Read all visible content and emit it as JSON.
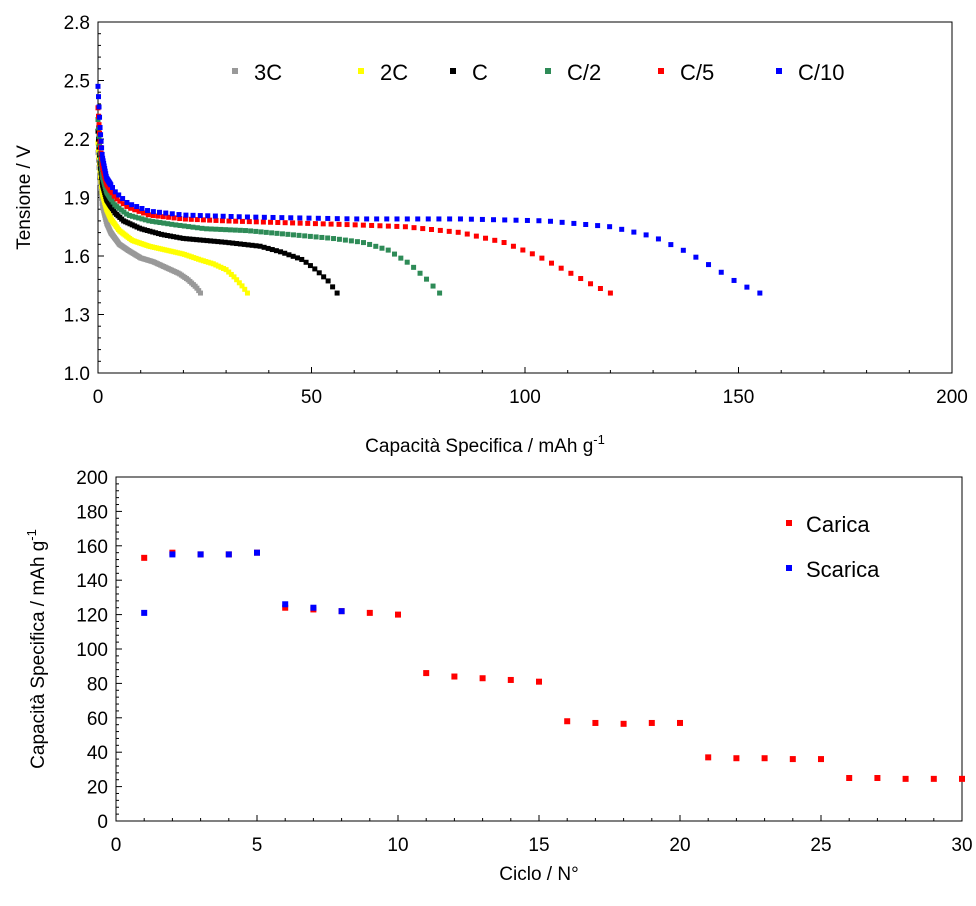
{
  "chart_data": [
    {
      "type": "scatter",
      "xlabel": "Capacità Specifica / mAh g",
      "xlabel_sup": "-1",
      "ylabel": "Tensione / V",
      "xlim": [
        0,
        200
      ],
      "ylim": [
        1.0,
        2.8
      ],
      "x_ticks": [
        "0",
        "50",
        "100",
        "150",
        "200"
      ],
      "y_ticks": [
        "1.0",
        "1.3",
        "1.6",
        "1.9",
        "2.2",
        "2.5",
        "2.8"
      ],
      "x_tick_values": [
        0,
        50,
        100,
        150,
        200
      ],
      "y_tick_values": [
        1.0,
        1.3,
        1.6,
        1.9,
        2.2,
        2.5,
        2.8
      ],
      "legend_position": "top",
      "series": [
        {
          "name": "3C",
          "color": "#999999",
          "capacity": 24,
          "points": [
            [
              0,
              2.13
            ],
            [
              0.5,
              1.97
            ],
            [
              1,
              1.86
            ],
            [
              2,
              1.77
            ],
            [
              3,
              1.72
            ],
            [
              4,
              1.69
            ],
            [
              5,
              1.66
            ],
            [
              7,
              1.63
            ],
            [
              10,
              1.59
            ],
            [
              13,
              1.57
            ],
            [
              16,
              1.54
            ],
            [
              19,
              1.51
            ],
            [
              21,
              1.48
            ],
            [
              23,
              1.44
            ],
            [
              24,
              1.41
            ]
          ]
        },
        {
          "name": "2C",
          "color": "#ffff00",
          "capacity": 35,
          "points": [
            [
              0,
              2.18
            ],
            [
              0.5,
              2.03
            ],
            [
              1,
              1.92
            ],
            [
              2,
              1.84
            ],
            [
              3,
              1.79
            ],
            [
              5,
              1.73
            ],
            [
              8,
              1.68
            ],
            [
              12,
              1.65
            ],
            [
              16,
              1.63
            ],
            [
              20,
              1.61
            ],
            [
              24,
              1.58
            ],
            [
              27,
              1.56
            ],
            [
              30,
              1.53
            ],
            [
              32,
              1.49
            ],
            [
              34,
              1.44
            ],
            [
              35,
              1.41
            ]
          ]
        },
        {
          "name": "C",
          "color": "#000000",
          "capacity": 56,
          "points": [
            [
              0,
              2.24
            ],
            [
              0.5,
              2.07
            ],
            [
              1,
              1.97
            ],
            [
              2,
              1.89
            ],
            [
              4,
              1.82
            ],
            [
              6,
              1.78
            ],
            [
              10,
              1.74
            ],
            [
              15,
              1.71
            ],
            [
              20,
              1.69
            ],
            [
              30,
              1.67
            ],
            [
              38,
              1.65
            ],
            [
              43,
              1.62
            ],
            [
              48,
              1.58
            ],
            [
              51,
              1.53
            ],
            [
              54,
              1.47
            ],
            [
              56,
              1.41
            ]
          ]
        },
        {
          "name": "C/2",
          "color": "#2e8b57",
          "capacity": 80,
          "points": [
            [
              0,
              2.3
            ],
            [
              0.5,
              2.12
            ],
            [
              1,
              2.01
            ],
            [
              2,
              1.93
            ],
            [
              4,
              1.86
            ],
            [
              7,
              1.81
            ],
            [
              12,
              1.78
            ],
            [
              18,
              1.76
            ],
            [
              25,
              1.74
            ],
            [
              35,
              1.73
            ],
            [
              45,
              1.71
            ],
            [
              55,
              1.69
            ],
            [
              62,
              1.67
            ],
            [
              68,
              1.63
            ],
            [
              73,
              1.56
            ],
            [
              77,
              1.48
            ],
            [
              80,
              1.41
            ]
          ]
        },
        {
          "name": "C/5",
          "color": "#ff0000",
          "capacity": 120,
          "points": [
            [
              0,
              2.36
            ],
            [
              0.5,
              2.18
            ],
            [
              1,
              2.06
            ],
            [
              2,
              1.97
            ],
            [
              4,
              1.9
            ],
            [
              7,
              1.85
            ],
            [
              12,
              1.81
            ],
            [
              20,
              1.79
            ],
            [
              30,
              1.78
            ],
            [
              45,
              1.77
            ],
            [
              60,
              1.76
            ],
            [
              72,
              1.75
            ],
            [
              85,
              1.72
            ],
            [
              95,
              1.67
            ],
            [
              103,
              1.6
            ],
            [
              110,
              1.52
            ],
            [
              116,
              1.45
            ],
            [
              120,
              1.41
            ]
          ]
        },
        {
          "name": "C/10",
          "color": "#0000ff",
          "capacity": 155,
          "points": [
            [
              0,
              2.47
            ],
            [
              0.5,
              2.25
            ],
            [
              1,
              2.11
            ],
            [
              2,
              2.0
            ],
            [
              4,
              1.93
            ],
            [
              7,
              1.87
            ],
            [
              12,
              1.83
            ],
            [
              20,
              1.81
            ],
            [
              35,
              1.8
            ],
            [
              60,
              1.79
            ],
            [
              85,
              1.79
            ],
            [
              105,
              1.78
            ],
            [
              120,
              1.75
            ],
            [
              130,
              1.7
            ],
            [
              138,
              1.62
            ],
            [
              145,
              1.53
            ],
            [
              150,
              1.46
            ],
            [
              155,
              1.41
            ]
          ]
        }
      ]
    },
    {
      "type": "scatter",
      "xlabel": "Ciclo / N°",
      "ylabel": "Capacità Specifica / mAh g",
      "ylabel_sup": "-1",
      "xlim": [
        0,
        30
      ],
      "ylim": [
        0,
        200
      ],
      "x_ticks": [
        "0",
        "5",
        "10",
        "15",
        "20",
        "25",
        "30"
      ],
      "y_ticks": [
        "0",
        "20",
        "40",
        "60",
        "80",
        "100",
        "120",
        "140",
        "160",
        "180",
        "200"
      ],
      "x_tick_values": [
        0,
        5,
        10,
        15,
        20,
        25,
        30
      ],
      "y_tick_values": [
        0,
        20,
        40,
        60,
        80,
        100,
        120,
        140,
        160,
        180,
        200
      ],
      "legend_position": "top-right",
      "series": [
        {
          "name": "Carica",
          "color": "#ff0000",
          "x": [
            1,
            2,
            3,
            4,
            5,
            6,
            7,
            8,
            9,
            10,
            11,
            12,
            13,
            14,
            15,
            16,
            17,
            18,
            19,
            20,
            21,
            22,
            23,
            24,
            25,
            26,
            27,
            28,
            29,
            30
          ],
          "values": [
            153,
            156,
            155,
            155,
            156,
            124,
            123,
            122,
            121,
            120,
            86,
            84,
            83,
            82,
            81,
            58,
            57,
            56.5,
            57,
            57,
            37,
            36.5,
            36.5,
            36,
            36,
            25,
            25,
            24.5,
            24.5,
            24.5
          ]
        },
        {
          "name": "Scarica",
          "color": "#0000ff",
          "x": [
            1,
            2,
            3,
            4,
            5,
            6,
            7,
            8
          ],
          "values": [
            121,
            155,
            155,
            155,
            156,
            126,
            124,
            122
          ]
        }
      ]
    }
  ]
}
